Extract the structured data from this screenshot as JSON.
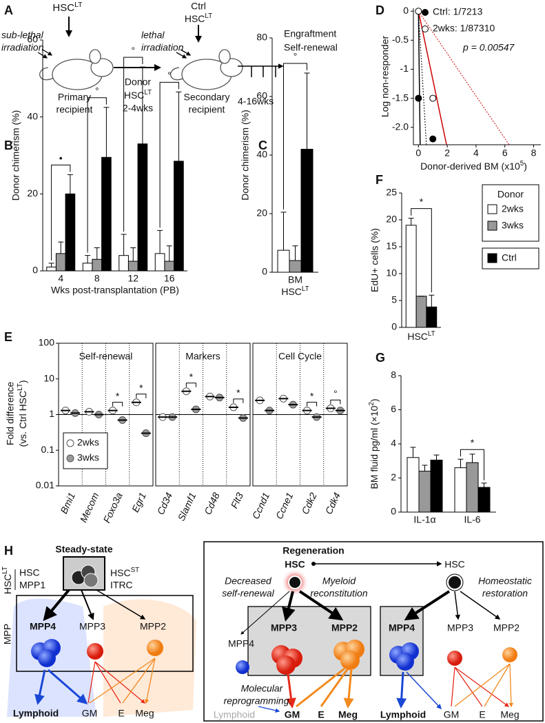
{
  "panel_labels": [
    "A",
    "B",
    "C",
    "D",
    "E",
    "F",
    "G",
    "H"
  ],
  "diagram_a": {
    "hsc_top": {
      "text": "HSC",
      "sup": "LT"
    },
    "sublethal": [
      "sub-lethal",
      "irradiation"
    ],
    "primary": [
      "Primary",
      "recipient"
    ],
    "donor": "Donor",
    "donor_hsc": {
      "text": "HSC",
      "sup": "LT"
    },
    "donor_time": "2-4wks",
    "ctrl": "Ctrl",
    "ctrl_hsc": {
      "text": "HSC",
      "sup": "LT"
    },
    "lethal": [
      "lethal",
      "irradiation"
    ],
    "secondary": [
      "Secondary",
      "recipient"
    ],
    "time": "4-16wks",
    "readout": [
      "Engraftment",
      "Self-renewal"
    ]
  },
  "chart_data": [
    {
      "type": "bar",
      "ylabel": "Donor chimerism (%)",
      "xlabel": "Wks post-transplantation (PB)",
      "categories": [
        "4",
        "8",
        "12",
        "16"
      ],
      "ylim": [
        0,
        60
      ],
      "yticks": [
        0,
        20,
        40,
        60
      ],
      "series": [
        {
          "color": "#ffffff",
          "values": [
            1,
            2,
            4,
            4.5
          ],
          "errors": [
            1,
            2,
            5.5,
            6
          ]
        },
        {
          "color": "#999999",
          "values": [
            4.5,
            3,
            2.5,
            2.5
          ],
          "errors": [
            3,
            3,
            3.5,
            4
          ]
        },
        {
          "color": "#000000",
          "values": [
            20,
            29.5,
            33,
            28.5
          ],
          "errors": [
            5,
            13,
            20,
            18
          ]
        }
      ],
      "significance": [
        "•",
        "°",
        "°",
        "°"
      ]
    },
    {
      "type": "bar",
      "ylabel": "Donor chimerism (%)",
      "categories": [
        "BM"
      ],
      "xlabel": {
        "text": "HSC",
        "sup": "LT"
      },
      "ylim": [
        0,
        80
      ],
      "yticks": [
        0,
        20,
        40,
        60,
        80
      ],
      "series": [
        {
          "color": "#ffffff",
          "values": [
            7.5
          ],
          "errors": [
            13
          ]
        },
        {
          "color": "#999999",
          "values": [
            4
          ],
          "errors": [
            5
          ]
        },
        {
          "color": "#000000",
          "values": [
            42
          ],
          "errors": [
            26
          ]
        }
      ],
      "significance": [
        "°"
      ]
    },
    {
      "type": "scatter",
      "ylabel": "Log non-responder",
      "xlabel": {
        "text": "Donor-derived BM (x10",
        "sup": "5",
        "tail": ")"
      },
      "xlim": [
        -0.35,
        8.5
      ],
      "ylim": [
        -2.3,
        0.05
      ],
      "xticks": [
        0,
        2,
        4,
        6,
        8
      ],
      "yticks": [
        0,
        -0.5,
        -1,
        -1.5,
        {
          "value": -2,
          "label": "-2.0"
        }
      ],
      "series": [
        {
          "name": "Ctrl: 1/7213",
          "color": "#000000",
          "marker": "filled",
          "x": [
            0,
            1
          ],
          "y": [
            -1.5,
            -2.2
          ]
        },
        {
          "name": "2wks: 1/87310",
          "color": "#000000",
          "marker": "open",
          "x": [
            0,
            1
          ],
          "y": [
            0,
            -1.5
          ]
        }
      ],
      "fit_lines": [
        {
          "color": "#000000",
          "style": "solid",
          "x": [
            0,
            0.12
          ],
          "y": [
            0,
            -2.3
          ]
        },
        {
          "color": "#000000",
          "style": "dotted",
          "x": [
            0,
            0.55
          ],
          "y": [
            0,
            -2.3
          ]
        },
        {
          "color": "#cc0000",
          "style": "solid",
          "x": [
            0,
            1.95
          ],
          "y": [
            0,
            -2.3
          ]
        },
        {
          "color": "#cc0000",
          "style": "dotted",
          "x": [
            0,
            6.3
          ],
          "y": [
            0,
            -2.3
          ]
        }
      ],
      "annotation": "p = 0.00547"
    },
    {
      "type": "strip",
      "log_scale": true,
      "ylabel": [
        "Fold difference",
        {
          "text": "(vs. Ctrl HSC",
          "sup": "LT",
          "tail": ")"
        }
      ],
      "ylim": [
        0.01,
        100
      ],
      "yticks": [
        100,
        10,
        1,
        0.1,
        0.01
      ],
      "group_labels": [
        "Self-renewal",
        "Markers",
        "Cell Cycle"
      ],
      "categories": [
        "Bmi1",
        "Mecom",
        "Foxo3a",
        "Egr1",
        "Cd34",
        "Slamf1",
        "Cd48",
        "Flt3",
        "Ccnd1",
        "Ccne1",
        "Cdk2",
        "Cdk4"
      ],
      "series": [
        {
          "name": "2wks",
          "color": "#ffffff",
          "values": [
            1.3,
            1.2,
            1.3,
            2.2,
            0.85,
            4.5,
            3.2,
            1.6,
            2.5,
            2.8,
            1.3,
            1.5
          ]
        },
        {
          "name": "3wks",
          "color": "#999999",
          "values": [
            1.1,
            1.0,
            0.7,
            0.3,
            0.85,
            1.4,
            3.0,
            0.8,
            1.3,
            1.9,
            0.85,
            1.3
          ]
        }
      ],
      "significance": [
        null,
        null,
        "*",
        "*",
        null,
        "*",
        null,
        "*",
        null,
        null,
        "*",
        "°"
      ]
    },
    {
      "type": "bar",
      "ylabel": "EdU+ cells (%)",
      "xlabel": {
        "text": "HSC",
        "sup": "LT"
      },
      "ylim": [
        0,
        25
      ],
      "yticks": [
        0,
        5,
        10,
        15,
        20,
        25
      ],
      "legend_title": "Donor",
      "series": [
        {
          "name": "2wks",
          "color": "#ffffff",
          "values": [
            19
          ],
          "errors": [
            1.3
          ]
        },
        {
          "name": "3wks",
          "color": "#999999",
          "values": [
            5.8
          ],
          "errors": [
            0
          ]
        },
        {
          "name": "Ctrl",
          "color": "#000000",
          "values": [
            3.8
          ],
          "errors": [
            2.2
          ]
        }
      ],
      "significance": [
        "*"
      ]
    },
    {
      "type": "bar",
      "ylabel": {
        "text": "BM fluid pg/ml (×10",
        "sup": "2",
        "tail": ")"
      },
      "categories": [
        "IL-1α",
        "IL-6"
      ],
      "ylim": [
        0,
        8
      ],
      "yticks": [
        0,
        2,
        4,
        6,
        8
      ],
      "series": [
        {
          "color": "#ffffff",
          "values": [
            3.2,
            2.6
          ],
          "errors": [
            0.6,
            0.5
          ]
        },
        {
          "color": "#999999",
          "values": [
            2.4,
            2.9
          ],
          "errors": [
            0.35,
            0.5
          ]
        },
        {
          "color": "#000000",
          "values": [
            3.05,
            1.45
          ],
          "errors": [
            0.3,
            0.25
          ]
        }
      ],
      "significance": [
        null,
        "*"
      ]
    }
  ],
  "diagram_h": {
    "steady": {
      "title": "Steady-state",
      "hsc_lt": {
        "text": "HSC",
        "sup": "LT"
      },
      "hsc": "HSC",
      "mpp1": "MPP1",
      "hsc_st": {
        "text": "HSC",
        "sup": "ST"
      },
      "itrc": "ITRC",
      "mpp": "MPP",
      "mpp4": "MPP4",
      "mpp3": "MPP3",
      "mpp2": "MPP2",
      "outputs": [
        "Lymphoid",
        "GM",
        "E",
        "Meg"
      ]
    },
    "regen": {
      "title": "Regeneration",
      "hsc_left": "HSC",
      "hsc_right": "HSC",
      "decreased": [
        "Decreased",
        "self-renewal"
      ],
      "myeloid": [
        "Myeloid",
        "reconstitution"
      ],
      "homeostatic": [
        "Homeostatic",
        "restoration"
      ],
      "mpp_left": [
        "MPP4",
        "MPP3",
        "MPP2"
      ],
      "molecular": [
        "Molecular",
        "reprogramming."
      ],
      "outputs_left": [
        "Lymphoid",
        "GM",
        "E",
        "Meg"
      ],
      "mpp_right": [
        "MPP4",
        "MPP3",
        "MPP2"
      ],
      "outputs_right": [
        "Lymphoid",
        "GM",
        "E",
        "Meg"
      ]
    }
  }
}
